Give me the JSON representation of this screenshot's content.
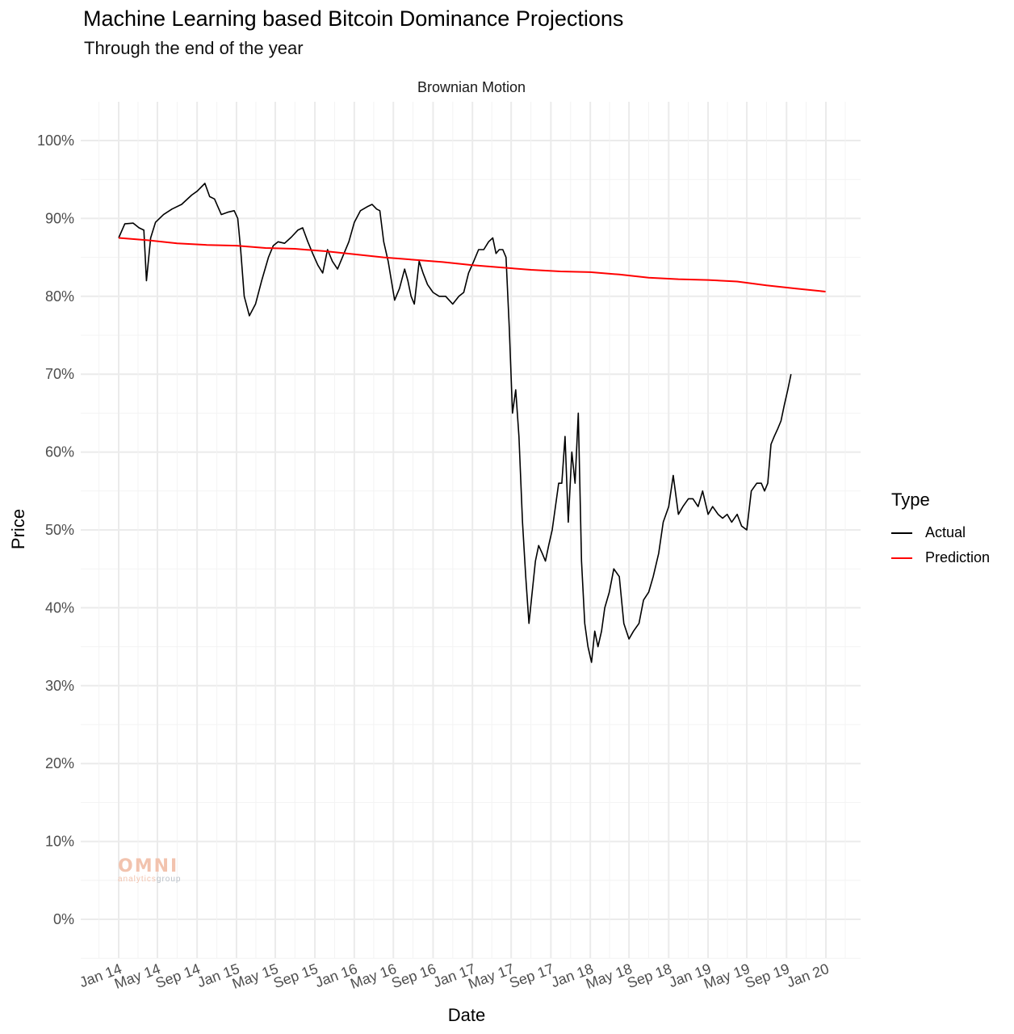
{
  "chart_data": {
    "type": "line",
    "title": "Machine Learning based Bitcoin Dominance Projections",
    "subtitle": "Through the end of the year",
    "facet_label": "Brownian Motion",
    "xlabel": "Date",
    "ylabel": "Price",
    "x_ticks": [
      "Jan 14",
      "May 14",
      "Sep 14",
      "Jan 15",
      "May 15",
      "Sep 15",
      "Jan 16",
      "May 16",
      "Sep 16",
      "Jan 17",
      "May 17",
      "Sep 17",
      "Jan 18",
      "May 18",
      "Sep 18",
      "Jan 19",
      "May 19",
      "Sep 19",
      "Jan 20"
    ],
    "y_ticks": [
      "0%",
      "10%",
      "20%",
      "30%",
      "40%",
      "50%",
      "60%",
      "70%",
      "80%",
      "90%",
      "100%"
    ],
    "ylim": [
      -0.05,
      1.05
    ],
    "xlim": [
      "2013-11-01",
      "2020-03-15"
    ],
    "grid": true,
    "legend": {
      "title": "Type",
      "position": "right",
      "entries": [
        "Actual",
        "Prediction"
      ]
    },
    "series": [
      {
        "name": "Actual",
        "color": "#000000",
        "x": [
          "2014-01-01",
          "2014-01-20",
          "2014-02-15",
          "2014-03-05",
          "2014-03-20",
          "2014-03-28",
          "2014-04-10",
          "2014-04-25",
          "2014-05-20",
          "2014-06-15",
          "2014-07-15",
          "2014-08-15",
          "2014-09-01",
          "2014-09-25",
          "2014-10-10",
          "2014-10-25",
          "2014-11-15",
          "2014-12-05",
          "2014-12-25",
          "2015-01-05",
          "2015-01-14",
          "2015-01-25",
          "2015-02-10",
          "2015-03-01",
          "2015-03-20",
          "2015-04-10",
          "2015-04-25",
          "2015-05-10",
          "2015-05-30",
          "2015-06-20",
          "2015-07-10",
          "2015-07-25",
          "2015-08-10",
          "2015-08-25",
          "2015-09-10",
          "2015-09-25",
          "2015-10-10",
          "2015-10-25",
          "2015-11-10",
          "2015-11-25",
          "2015-12-15",
          "2016-01-01",
          "2016-01-20",
          "2016-02-10",
          "2016-02-25",
          "2016-03-10",
          "2016-03-20",
          "2016-04-01",
          "2016-04-15",
          "2016-04-25",
          "2016-05-05",
          "2016-05-20",
          "2016-06-05",
          "2016-06-15",
          "2016-06-25",
          "2016-07-05",
          "2016-07-20",
          "2016-08-01",
          "2016-08-15",
          "2016-09-01",
          "2016-09-20",
          "2016-10-10",
          "2016-11-01",
          "2016-11-20",
          "2016-12-05",
          "2016-12-20",
          "2017-01-05",
          "2017-01-20",
          "2017-02-05",
          "2017-02-20",
          "2017-03-05",
          "2017-03-15",
          "2017-03-25",
          "2017-04-05",
          "2017-04-15",
          "2017-04-25",
          "2017-05-05",
          "2017-05-15",
          "2017-05-25",
          "2017-06-05",
          "2017-06-15",
          "2017-06-25",
          "2017-07-05",
          "2017-07-15",
          "2017-07-25",
          "2017-08-05",
          "2017-08-15",
          "2017-08-25",
          "2017-09-05",
          "2017-09-15",
          "2017-09-25",
          "2017-10-05",
          "2017-10-15",
          "2017-10-25",
          "2017-11-05",
          "2017-11-15",
          "2017-11-25",
          "2017-12-05",
          "2017-12-15",
          "2017-12-25",
          "2018-01-05",
          "2018-01-15",
          "2018-01-25",
          "2018-02-05",
          "2018-02-15",
          "2018-03-01",
          "2018-03-15",
          "2018-04-01",
          "2018-04-15",
          "2018-05-01",
          "2018-05-15",
          "2018-06-01",
          "2018-06-15",
          "2018-07-01",
          "2018-07-15",
          "2018-08-01",
          "2018-08-15",
          "2018-09-01",
          "2018-09-15",
          "2018-10-01",
          "2018-10-15",
          "2018-11-01",
          "2018-11-15",
          "2018-12-01",
          "2018-12-15",
          "2019-01-01",
          "2019-01-15",
          "2019-02-01",
          "2019-02-15",
          "2019-03-01",
          "2019-03-15",
          "2019-04-01",
          "2019-04-15",
          "2019-05-01",
          "2019-05-15",
          "2019-06-01",
          "2019-06-15",
          "2019-06-25",
          "2019-07-05",
          "2019-07-15",
          "2019-07-25",
          "2019-08-05",
          "2019-08-15",
          "2019-08-25",
          "2019-09-05",
          "2019-09-15"
        ],
        "y": [
          0.875,
          0.893,
          0.894,
          0.888,
          0.885,
          0.82,
          0.875,
          0.895,
          0.905,
          0.912,
          0.918,
          0.93,
          0.935,
          0.945,
          0.928,
          0.925,
          0.905,
          0.908,
          0.91,
          0.9,
          0.86,
          0.8,
          0.775,
          0.79,
          0.82,
          0.85,
          0.865,
          0.87,
          0.868,
          0.876,
          0.885,
          0.888,
          0.87,
          0.855,
          0.84,
          0.83,
          0.86,
          0.845,
          0.835,
          0.85,
          0.87,
          0.895,
          0.91,
          0.915,
          0.918,
          0.912,
          0.91,
          0.87,
          0.845,
          0.82,
          0.795,
          0.81,
          0.835,
          0.82,
          0.8,
          0.79,
          0.845,
          0.83,
          0.815,
          0.805,
          0.8,
          0.8,
          0.79,
          0.8,
          0.805,
          0.83,
          0.845,
          0.86,
          0.86,
          0.87,
          0.875,
          0.855,
          0.86,
          0.86,
          0.85,
          0.76,
          0.65,
          0.68,
          0.62,
          0.51,
          0.44,
          0.38,
          0.42,
          0.46,
          0.48,
          0.47,
          0.46,
          0.48,
          0.5,
          0.53,
          0.56,
          0.56,
          0.62,
          0.51,
          0.6,
          0.56,
          0.65,
          0.46,
          0.38,
          0.35,
          0.33,
          0.37,
          0.35,
          0.37,
          0.4,
          0.42,
          0.45,
          0.44,
          0.38,
          0.36,
          0.37,
          0.38,
          0.41,
          0.42,
          0.44,
          0.47,
          0.51,
          0.53,
          0.57,
          0.52,
          0.53,
          0.54,
          0.54,
          0.53,
          0.55,
          0.52,
          0.53,
          0.52,
          0.515,
          0.52,
          0.51,
          0.52,
          0.505,
          0.5,
          0.55,
          0.56,
          0.56,
          0.55,
          0.56,
          0.61,
          0.62,
          0.63,
          0.64,
          0.66,
          0.68,
          0.7
        ]
      },
      {
        "name": "Prediction",
        "color": "#ff0000",
        "x": [
          "2014-01-01",
          "2014-04-01",
          "2014-07-01",
          "2014-10-01",
          "2015-01-01",
          "2015-04-01",
          "2015-07-01",
          "2015-10-01",
          "2016-01-01",
          "2016-04-01",
          "2016-07-01",
          "2016-10-01",
          "2017-01-01",
          "2017-04-01",
          "2017-07-01",
          "2017-10-01",
          "2018-01-01",
          "2018-04-01",
          "2018-07-01",
          "2018-10-01",
          "2019-01-01",
          "2019-04-01",
          "2019-07-01",
          "2019-10-01",
          "2019-12-31"
        ],
        "y": [
          0.875,
          0.872,
          0.868,
          0.866,
          0.865,
          0.862,
          0.861,
          0.858,
          0.854,
          0.85,
          0.847,
          0.844,
          0.84,
          0.837,
          0.834,
          0.832,
          0.831,
          0.828,
          0.824,
          0.822,
          0.821,
          0.819,
          0.814,
          0.81,
          0.806
        ]
      }
    ]
  }
}
